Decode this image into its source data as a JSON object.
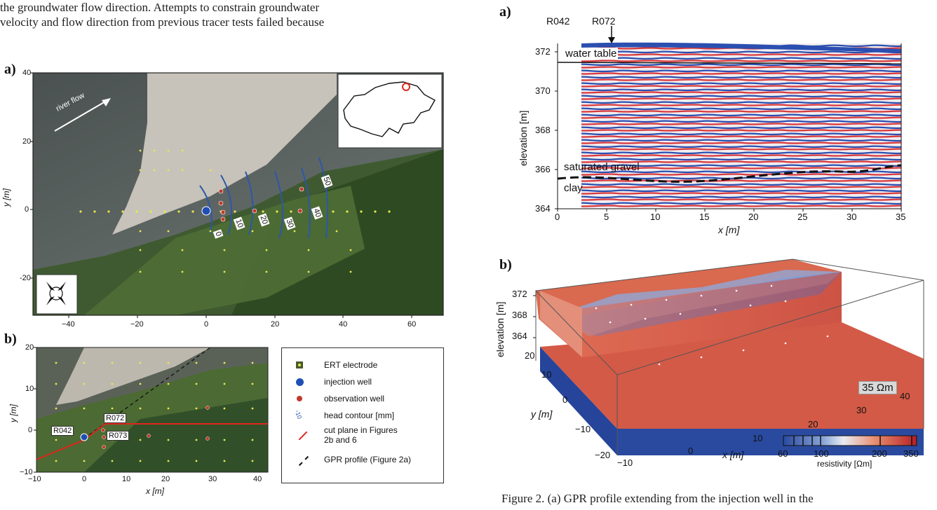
{
  "body_text": {
    "line1": "the groundwater flow direction. Attempts to constrain groundwater",
    "line2": "velocity and flow direction from previous tracer tests failed because"
  },
  "figure1": {
    "panel_a_label": "a)",
    "panel_b_label": "b)",
    "river_flow": "river flow",
    "y_axis_label": "y [m]",
    "x_axis_label": "x [m]",
    "a_yticks": [
      "40",
      "20",
      "0",
      "-20"
    ],
    "a_xticks": [
      "−40",
      "−20",
      "0",
      "20",
      "40",
      "60"
    ],
    "b_yticks": [
      "20",
      "10",
      "0",
      "−10"
    ],
    "b_xticks": [
      "−10",
      "0",
      "10",
      "20",
      "30",
      "40"
    ],
    "contours": [
      "0",
      "10",
      "20",
      "30",
      "40",
      "50"
    ],
    "wells": [
      "R042",
      "R072",
      "R073"
    ],
    "legend": [
      {
        "label": "ERT electrode"
      },
      {
        "label": "injection well"
      },
      {
        "label": "observation well"
      },
      {
        "label": "head contour [mm]"
      },
      {
        "label": "cut plane in Figures"
      },
      {
        "label": "2b and 6"
      },
      {
        "label": "GPR profile (Figure 2a)"
      }
    ],
    "legend_contour_glyph": "-10"
  },
  "figure2": {
    "panel_a_label": "a)",
    "panel_b_label": "b)",
    "labels_top": [
      "R042",
      "R072"
    ],
    "water_table": "water table",
    "saturated_gravel": "saturated gravel",
    "clay": "clay",
    "ylabel": "elevation [m]",
    "xlabel": "x [m]",
    "yticks": [
      "372",
      "370",
      "368",
      "366",
      "364"
    ],
    "xticks": [
      "0",
      "5",
      "10",
      "15",
      "20",
      "25",
      "30",
      "35"
    ],
    "b_ylabel_elev": "elevation [m]",
    "b_elev_ticks": [
      "372",
      "368",
      "364"
    ],
    "b_y_label": "y [m]",
    "b_y_ticks": [
      "20",
      "10",
      "0",
      "−10",
      "−20"
    ],
    "b_x_label": "x [m]",
    "b_x_ticks": [
      "−10",
      "0",
      "10",
      "20",
      "30",
      "40"
    ],
    "annotation": "35 Ωm",
    "colorbar_ticks": [
      "60",
      "100",
      "200",
      "350"
    ],
    "colorbar_label": "resistivity [Ωm]",
    "caption": "Figure 2.  (a) GPR profile extending from the injection well in the"
  },
  "colors": {
    "ert_electrode": "#e8e84a",
    "injection_well": "#1f4fb5",
    "observation_well": "#c0392b",
    "cut_plane": "#e0261c",
    "contour": "#2c57a8"
  }
}
